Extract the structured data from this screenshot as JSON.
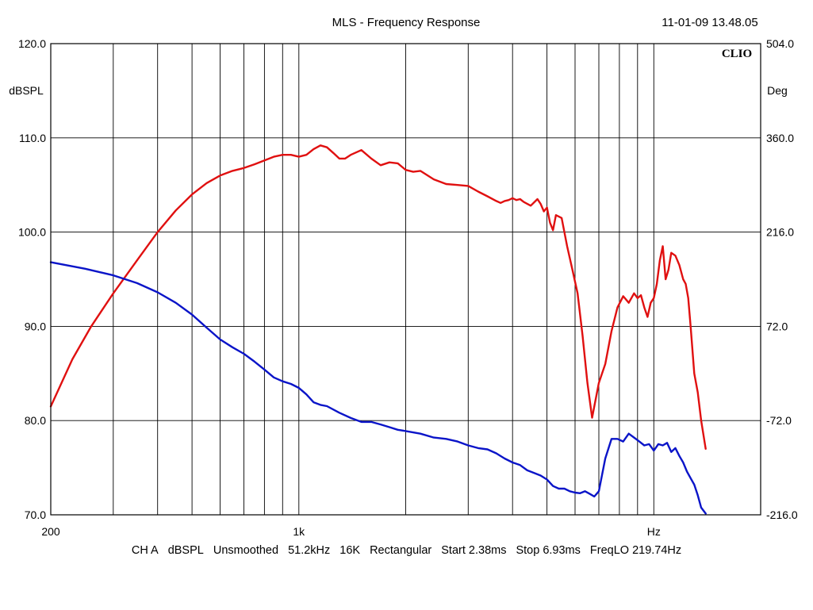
{
  "header": {
    "title": "MLS - Frequency Response",
    "timestamp": "11-01-09 13.48.05",
    "brand": "CLIO"
  },
  "footer": {
    "items": [
      "CH A",
      "dBSPL",
      "Unsmoothed",
      "51.2kHz",
      "16K",
      "Rectangular",
      "Start 2.38ms",
      "Stop 6.93ms",
      "FreqLO 219.74Hz"
    ]
  },
  "chart_data": {
    "type": "line",
    "xscale": "log",
    "xlim": [
      200,
      20000
    ],
    "x_tick_labels": [
      {
        "value": 200,
        "label": "200"
      },
      {
        "value": 1000,
        "label": "1k"
      },
      {
        "value": 10000,
        "label": "Hz"
      }
    ],
    "ylabel": "dBSPL",
    "ylim": [
      70,
      120
    ],
    "y_ticks": [
      "70.0",
      "80.0",
      "90.0",
      "100.0",
      "110.0",
      "120.0"
    ],
    "y2label": "Deg",
    "y2lim": [
      -216,
      504
    ],
    "y2_ticks": [
      "-216.0",
      "-72.0",
      "72.0",
      "216.0",
      "360.0",
      "504.0"
    ],
    "grid": true,
    "colors": {
      "magnitude": "#e01010",
      "phase": "#0a14c8"
    },
    "series": [
      {
        "id": "magnitude",
        "axis": "left",
        "x": [
          200,
          230,
          260,
          300,
          350,
          400,
          450,
          500,
          550,
          600,
          650,
          700,
          750,
          800,
          850,
          900,
          950,
          1000,
          1050,
          1100,
          1150,
          1200,
          1250,
          1300,
          1350,
          1400,
          1500,
          1600,
          1700,
          1800,
          1900,
          2000,
          2100,
          2200,
          2400,
          2600,
          2800,
          3000,
          3200,
          3400,
          3600,
          3700,
          3800,
          3900,
          4000,
          4100,
          4200,
          4300,
          4500,
          4700,
          4800,
          4900,
          5000,
          5100,
          5200,
          5300,
          5500,
          5700,
          5900,
          6100,
          6300,
          6500,
          6700,
          7000,
          7300,
          7600,
          7900,
          8200,
          8500,
          8800,
          9000,
          9200,
          9400,
          9600,
          9800,
          10000,
          10200,
          10400,
          10600,
          10800,
          11000,
          11200,
          11500,
          11800,
          12100,
          12300,
          12500,
          12700,
          13000,
          13300,
          13600,
          14000
        ],
        "y": [
          81.5,
          86.5,
          90.0,
          93.5,
          97.0,
          100.0,
          102.3,
          104.0,
          105.2,
          106.0,
          106.5,
          106.8,
          107.2,
          107.6,
          108.0,
          108.2,
          108.2,
          108.0,
          108.2,
          108.8,
          109.2,
          109.0,
          108.4,
          107.8,
          107.8,
          108.2,
          108.7,
          107.8,
          107.1,
          107.4,
          107.3,
          106.6,
          106.4,
          106.5,
          105.6,
          105.1,
          105.0,
          104.9,
          104.3,
          103.8,
          103.3,
          103.1,
          103.3,
          103.4,
          103.6,
          103.4,
          103.5,
          103.2,
          102.8,
          103.5,
          103.0,
          102.2,
          102.6,
          101.0,
          100.2,
          101.8,
          101.5,
          98.5,
          96.0,
          93.5,
          89.0,
          84.0,
          80.3,
          84.0,
          86.0,
          89.5,
          92.0,
          93.2,
          92.5,
          93.5,
          93.0,
          93.3,
          92.0,
          91.0,
          92.5,
          93.0,
          94.5,
          97.0,
          98.5,
          95.0,
          96.0,
          97.8,
          97.5,
          96.5,
          95.0,
          94.5,
          93.0,
          90.0,
          85.0,
          83.0,
          80.0,
          77.0
        ]
      },
      {
        "id": "phase",
        "axis": "right",
        "x": [
          200,
          250,
          300,
          350,
          400,
          450,
          500,
          550,
          600,
          650,
          700,
          750,
          800,
          850,
          900,
          950,
          1000,
          1050,
          1100,
          1150,
          1200,
          1300,
          1400,
          1500,
          1600,
          1700,
          1800,
          1900,
          2000,
          2200,
          2400,
          2600,
          2800,
          3000,
          3200,
          3400,
          3600,
          3800,
          4000,
          4200,
          4400,
          4600,
          4800,
          5000,
          5200,
          5400,
          5600,
          5800,
          6000,
          6200,
          6400,
          6600,
          6800,
          7000,
          7300,
          7600,
          7900,
          8200,
          8500,
          8800,
          9100,
          9400,
          9700,
          10000,
          10300,
          10600,
          10900,
          11200,
          11500,
          11800,
          12100,
          12400,
          12700,
          13000,
          13300,
          13600,
          14000
        ],
        "y": [
          170,
          160,
          150,
          138,
          124,
          108,
          90,
          70,
          52,
          40,
          30,
          18,
          6,
          -6,
          -12,
          -16,
          -22,
          -32,
          -44,
          -48,
          -50,
          -60,
          -68,
          -74,
          -74,
          -78,
          -82,
          -86,
          -88,
          -92,
          -98,
          -100,
          -104,
          -110,
          -114,
          -116,
          -122,
          -130,
          -136,
          -140,
          -148,
          -152,
          -156,
          -162,
          -172,
          -176,
          -176,
          -180,
          -182,
          -183,
          -180,
          -184,
          -188,
          -180,
          -130,
          -100,
          -100,
          -104,
          -92,
          -98,
          -104,
          -110,
          -108,
          -118,
          -108,
          -110,
          -106,
          -120,
          -114,
          -126,
          -136,
          -150,
          -160,
          -170,
          -186,
          -205,
          -214
        ]
      }
    ]
  }
}
